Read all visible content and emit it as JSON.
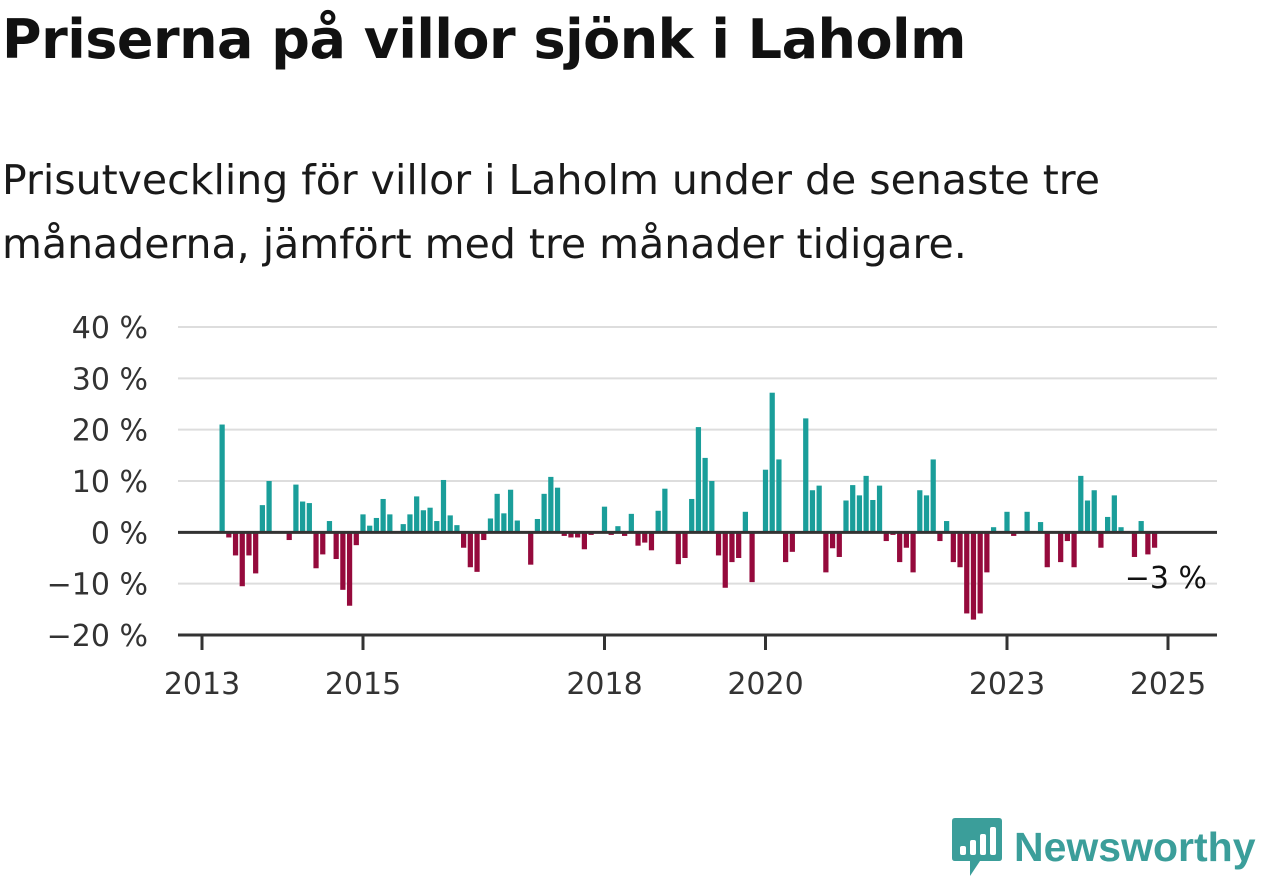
{
  "title": "Priserna på villor sjönk i Laholm",
  "subtitle": "Prisutveckling för villor i Laholm under de senaste tre månaderna, jämfört med tre månader tidigare.",
  "brand": {
    "name": "Newsworthy",
    "icon": "newsworthy-logo-icon",
    "color": "#3b9e9a"
  },
  "colors": {
    "positive": "#1a9e9a",
    "negative": "#950a3c",
    "grid": "#dddddd",
    "axis": "#333333"
  },
  "chart_data": {
    "type": "bar",
    "ylim": [
      -20,
      40
    ],
    "yticks": [
      {
        "value": 40,
        "label": "40 %"
      },
      {
        "value": 30,
        "label": "30 %"
      },
      {
        "value": 20,
        "label": "20 %"
      },
      {
        "value": 10,
        "label": "10 %"
      },
      {
        "value": 0,
        "label": "0 %"
      },
      {
        "value": -10,
        "label": "−10 %"
      },
      {
        "value": -20,
        "label": "−20 %"
      }
    ],
    "xticks": [
      {
        "value": "2013-01",
        "label": "2013"
      },
      {
        "value": "2015-01",
        "label": "2015"
      },
      {
        "value": "2018-01",
        "label": "2018"
      },
      {
        "value": "2020-01",
        "label": "2020"
      },
      {
        "value": "2023-01",
        "label": "2023"
      },
      {
        "value": "2025-01",
        "label": "2025"
      }
    ],
    "grid": true,
    "last_value_label": "−3 %",
    "x": [
      "2013-04",
      "2013-05",
      "2013-06",
      "2013-07",
      "2013-08",
      "2013-09",
      "2013-10",
      "2013-11",
      "2013-12",
      "2014-01",
      "2014-02",
      "2014-03",
      "2014-04",
      "2014-05",
      "2014-06",
      "2014-07",
      "2014-08",
      "2014-09",
      "2014-10",
      "2014-11",
      "2014-12",
      "2015-01",
      "2015-02",
      "2015-03",
      "2015-04",
      "2015-05",
      "2015-06",
      "2015-07",
      "2015-08",
      "2015-09",
      "2015-10",
      "2015-11",
      "2015-12",
      "2016-01",
      "2016-02",
      "2016-03",
      "2016-04",
      "2016-05",
      "2016-06",
      "2016-07",
      "2016-08",
      "2016-09",
      "2016-10",
      "2016-11",
      "2016-12",
      "2017-01",
      "2017-02",
      "2017-03",
      "2017-04",
      "2017-05",
      "2017-06",
      "2017-07",
      "2017-08",
      "2017-09",
      "2017-10",
      "2017-11",
      "2017-12",
      "2018-01",
      "2018-02",
      "2018-03",
      "2018-04",
      "2018-05",
      "2018-06",
      "2018-07",
      "2018-08",
      "2018-09",
      "2018-10",
      "2018-11",
      "2018-12",
      "2019-01",
      "2019-02",
      "2019-03",
      "2019-04",
      "2019-05",
      "2019-06",
      "2019-07",
      "2019-08",
      "2019-09",
      "2019-10",
      "2019-11",
      "2019-12",
      "2020-01",
      "2020-02",
      "2020-03",
      "2020-04",
      "2020-05",
      "2020-06",
      "2020-07",
      "2020-08",
      "2020-09",
      "2020-10",
      "2020-11",
      "2020-12",
      "2021-01",
      "2021-02",
      "2021-03",
      "2021-04",
      "2021-05",
      "2021-06",
      "2021-07",
      "2021-08",
      "2021-09",
      "2021-10",
      "2021-11",
      "2021-12",
      "2022-01",
      "2022-02",
      "2022-03",
      "2022-04",
      "2022-05",
      "2022-06",
      "2022-07",
      "2022-08",
      "2022-09",
      "2022-10",
      "2022-11",
      "2022-12",
      "2023-01",
      "2023-02",
      "2023-03",
      "2023-04",
      "2023-05",
      "2023-06",
      "2023-07",
      "2023-08",
      "2023-09",
      "2023-10",
      "2023-11",
      "2023-12",
      "2024-01",
      "2024-02",
      "2024-03",
      "2024-04",
      "2024-05",
      "2024-06",
      "2024-07",
      "2024-08",
      "2024-09",
      "2024-10",
      "2024-11",
      "2024-12",
      "2025-01",
      "2025-02"
    ],
    "values": [
      21,
      -1,
      -4.5,
      -10.5,
      -4.5,
      -8,
      5.3,
      10,
      null,
      null,
      -1.5,
      9.3,
      6,
      5.7,
      -7,
      -4.3,
      2.2,
      -5.2,
      -11.2,
      -14.3,
      -2.5,
      3.5,
      1.3,
      2.8,
      6.5,
      3.5,
      null,
      1.6,
      3.5,
      7,
      4.3,
      4.8,
      2.2,
      10.2,
      3.3,
      1.4,
      -3,
      -6.8,
      -7.7,
      -1.5,
      2.7,
      7.5,
      3.7,
      8.3,
      2.3,
      null,
      -6.3,
      2.6,
      7.5,
      10.8,
      8.7,
      -0.7,
      -1,
      -1,
      -3.3,
      -0.5,
      null,
      5,
      -0.5,
      1.2,
      -0.7,
      3.6,
      -2.6,
      -2,
      -3.5,
      4.2,
      8.5,
      null,
      -6.2,
      -5,
      6.5,
      20.5,
      14.5,
      10,
      -4.5,
      -10.8,
      -5.8,
      -5,
      4,
      -9.7,
      null,
      12.2,
      27.2,
      14.2,
      -5.8,
      -3.8,
      null,
      22.2,
      8.2,
      9.1,
      -7.8,
      -3.1,
      -4.8,
      6.2,
      9.2,
      7.2,
      11,
      6.3,
      9.1,
      -1.7,
      -0.5,
      -5.8,
      -3,
      -7.8,
      8.2,
      7.2,
      14.2,
      -1.7,
      2.2,
      -5.8,
      -6.8,
      -15.8,
      -17,
      -15.8,
      -7.8,
      1,
      null,
      4,
      -0.7,
      null,
      4,
      null,
      2,
      -6.8,
      null,
      -5.8,
      -1.7,
      -6.8,
      11,
      6.2,
      8.2,
      -3,
      3,
      7.2,
      1,
      null,
      -4.8,
      2.2,
      -4.3,
      -3,
      null,
      null,
      null
    ]
  }
}
